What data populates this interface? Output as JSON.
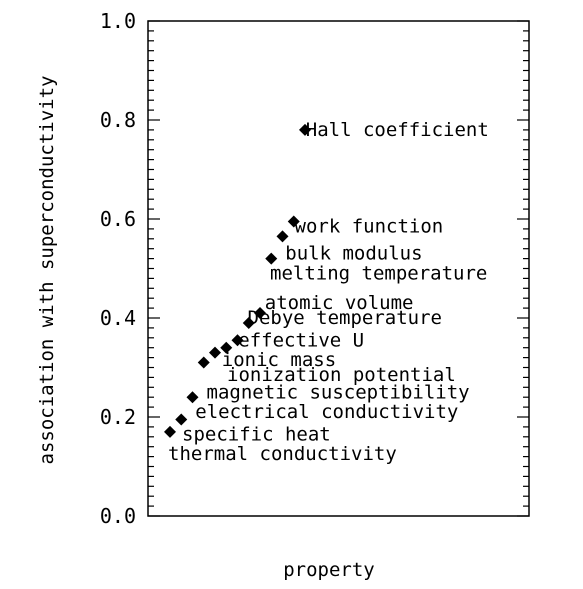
{
  "chart_data": {
    "type": "scatter",
    "title": "",
    "xlabel": "property",
    "ylabel": "association with superconductivity",
    "ylim": [
      0.0,
      1.0
    ],
    "yticks": [
      "0.0",
      "0.2",
      "0.4",
      "0.6",
      "0.8",
      "1.0"
    ],
    "grid": false,
    "legend": "none",
    "marker": "diamond",
    "color": "#000000",
    "points": [
      {
        "x": 1,
        "y": 0.17,
        "label": "specific heat"
      },
      {
        "x": 2,
        "y": 0.195,
        "label": "electrical conductivity"
      },
      {
        "x": 3,
        "y": 0.24,
        "label": "magnetic susceptibility"
      },
      {
        "x": 4,
        "y": 0.31,
        "label": "ionic mass"
      },
      {
        "x": 5,
        "y": 0.33,
        "label": "ionization potential"
      },
      {
        "x": 6,
        "y": 0.34,
        "label": "effective U"
      },
      {
        "x": 7,
        "y": 0.355,
        "label": "Debye temperature"
      },
      {
        "x": 8,
        "y": 0.39,
        "label": "atomic volume"
      },
      {
        "x": 9,
        "y": 0.41,
        "label": "melting temperature"
      },
      {
        "x": 10,
        "y": 0.52,
        "label": "bulk modulus"
      },
      {
        "x": 11,
        "y": 0.565,
        "label": "work function"
      },
      {
        "x": 12,
        "y": 0.595,
        "label": "Hall coefficient"
      },
      {
        "x": 13,
        "y": 0.78,
        "label": "thermal conductivity"
      }
    ]
  }
}
